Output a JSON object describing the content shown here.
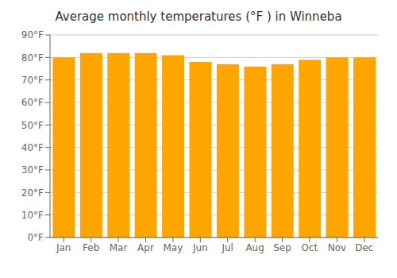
{
  "chart_data": {
    "type": "bar",
    "title": "Average monthly temperatures (°F ) in Winneba",
    "categories": [
      "Jan",
      "Feb",
      "Mar",
      "Apr",
      "May",
      "Jun",
      "Jul",
      "Aug",
      "Sep",
      "Oct",
      "Nov",
      "Dec"
    ],
    "values": [
      80,
      82,
      82,
      82,
      81,
      78,
      77,
      76,
      77,
      79,
      80,
      80
    ],
    "color": "#FFA500",
    "ylim": [
      0,
      90
    ],
    "yticks": [
      {
        "value": 0,
        "label": "0°F"
      },
      {
        "value": 10,
        "label": "10°F"
      },
      {
        "value": 20,
        "label": "20°F"
      },
      {
        "value": 30,
        "label": "30°F"
      },
      {
        "value": 40,
        "label": "40°F"
      },
      {
        "value": 50,
        "label": "50°F"
      },
      {
        "value": 60,
        "label": "60°F"
      },
      {
        "value": 70,
        "label": "70°F"
      },
      {
        "value": 80,
        "label": "80°F"
      },
      {
        "value": 90,
        "label": "90°F"
      }
    ],
    "grid": true
  }
}
